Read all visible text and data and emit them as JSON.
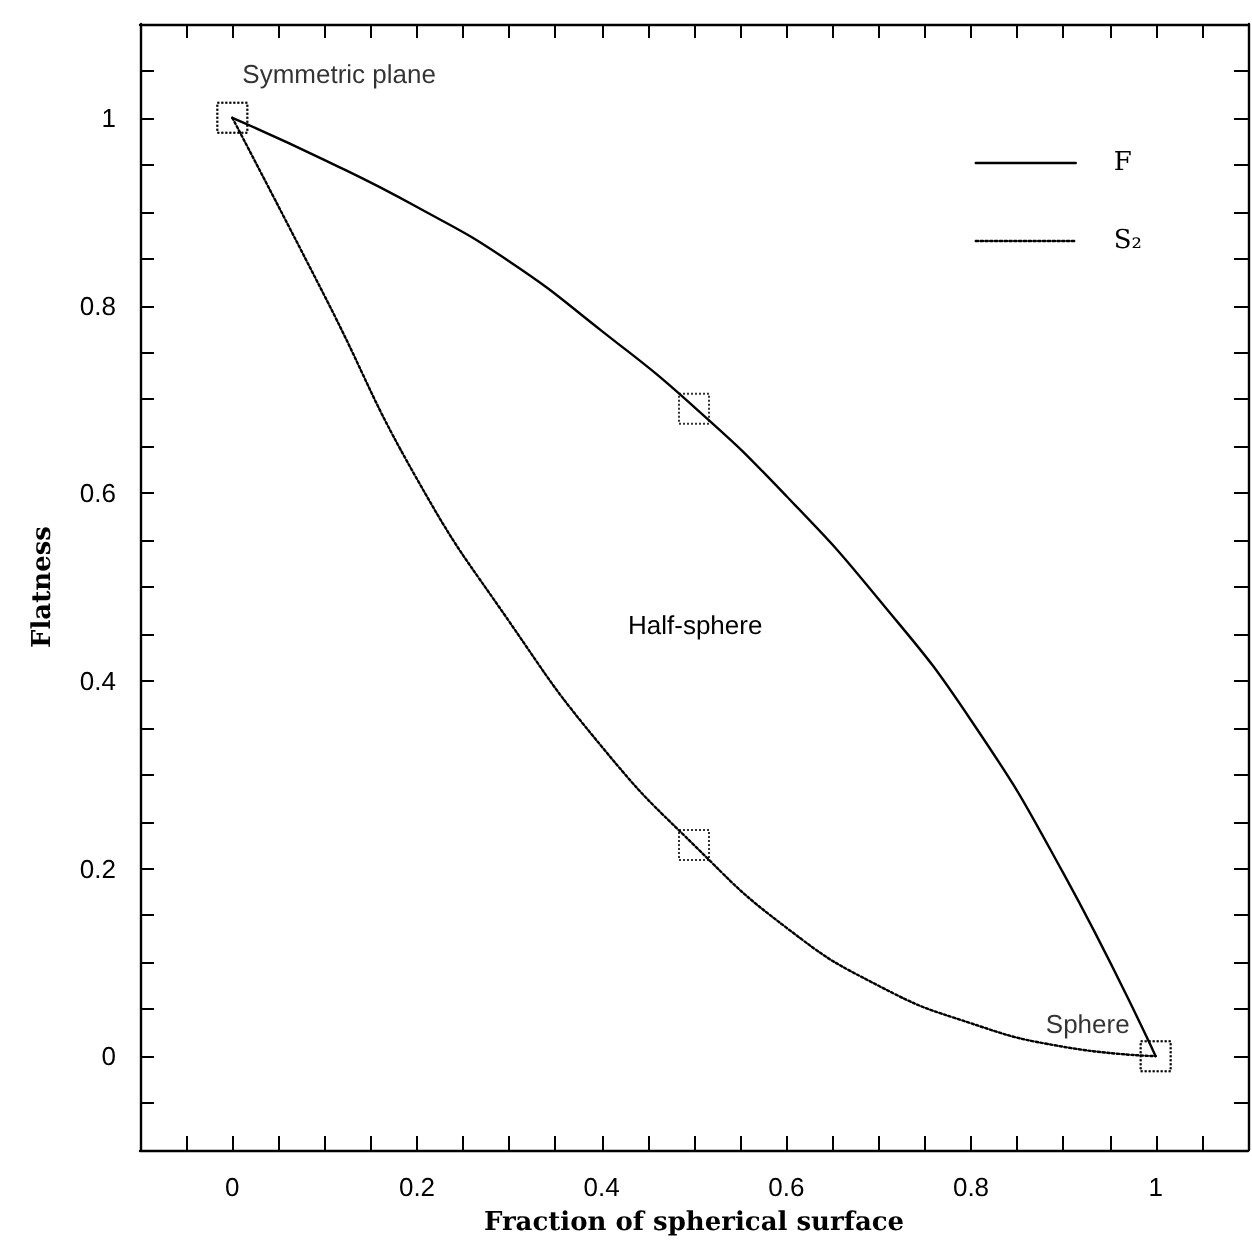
{
  "chart_data": {
    "type": "line",
    "xlabel": "Fraction of spherical surface",
    "ylabel": "Flatness",
    "xlim": [
      -0.1,
      1.1
    ],
    "ylim": [
      -0.1,
      1.1
    ],
    "xticks": [
      {
        "value": -0.05,
        "label": null
      },
      0,
      {
        "value": 0.05,
        "label": null
      },
      {
        "value": 0.1,
        "label": null
      },
      {
        "value": 0.15,
        "label": null
      },
      0.2,
      {
        "value": 0.25,
        "label": null
      },
      {
        "value": 0.3,
        "label": null
      },
      {
        "value": 0.35,
        "label": null
      },
      0.4,
      {
        "value": 0.45,
        "label": null
      },
      {
        "value": 0.5,
        "label": null
      },
      {
        "value": 0.55,
        "label": null
      },
      0.6,
      {
        "value": 0.65,
        "label": null
      },
      {
        "value": 0.7,
        "label": null
      },
      {
        "value": 0.75,
        "label": null
      },
      0.8,
      {
        "value": 0.85,
        "label": null
      },
      {
        "value": 0.9,
        "label": null
      },
      {
        "value": 0.95,
        "label": null
      },
      1,
      {
        "value": 1.05,
        "label": null
      }
    ],
    "yticks": [
      {
        "value": -0.05,
        "label": null
      },
      0,
      {
        "value": 0.05,
        "label": null
      },
      {
        "value": 0.1,
        "label": null
      },
      {
        "value": 0.15,
        "label": null
      },
      0.2,
      {
        "value": 0.25,
        "label": null
      },
      {
        "value": 0.3,
        "label": null
      },
      {
        "value": 0.35,
        "label": null
      },
      0.4,
      {
        "value": 0.45,
        "label": null
      },
      {
        "value": 0.5,
        "label": null
      },
      {
        "value": 0.55,
        "label": null
      },
      0.6,
      {
        "value": 0.65,
        "label": null
      },
      {
        "value": 0.7,
        "label": null
      },
      {
        "value": 0.75,
        "label": null
      },
      0.8,
      {
        "value": 0.85,
        "label": null
      },
      {
        "value": 0.9,
        "label": null
      },
      {
        "value": 0.95,
        "label": null
      },
      1,
      {
        "value": 1.05,
        "label": null
      }
    ],
    "grid": false,
    "legend": "top right",
    "marker": "none",
    "series": [
      {
        "name": "F",
        "color": "#000000",
        "line_style": "solid",
        "x": [
          0,
          0.1,
          0.2,
          0.3,
          0.4,
          0.5,
          0.6,
          0.7,
          0.8,
          0.9,
          1
        ],
        "values": [
          1,
          0.955,
          0.905,
          0.847,
          0.773,
          0.692,
          0.597,
          0.487,
          0.358,
          0.195,
          0
        ]
      },
      {
        "name": "S₂",
        "color": "#000000",
        "line_style": "dotted",
        "x": [
          0,
          0.1,
          0.2,
          0.3,
          0.4,
          0.5,
          0.6,
          0.7,
          0.8,
          0.9,
          1
        ],
        "values": [
          1,
          0.81,
          0.615,
          0.463,
          0.33,
          0.225,
          0.137,
          0.075,
          0.035,
          0.01,
          0
        ]
      },
      {
        "type": "scatter",
        "color": "#000000",
        "marker": "square",
        "line_style": "dotted",
        "x": [
          0,
          0.5,
          1
        ],
        "values": [
          1,
          0.69,
          0
        ]
      },
      {
        "type": "scatter",
        "color": "#000000",
        "marker": "square",
        "line_style": "dotted",
        "x": [
          0,
          0.5,
          1
        ],
        "values": [
          1,
          0.225,
          0
        ]
      }
    ],
    "annotations": [
      {
        "text": "Symmetric plane",
        "x": 0,
        "y": 1
      },
      "Half-sphere",
      {
        "text": "Sphere",
        "x": 1,
        "y": 0
      }
    ]
  }
}
